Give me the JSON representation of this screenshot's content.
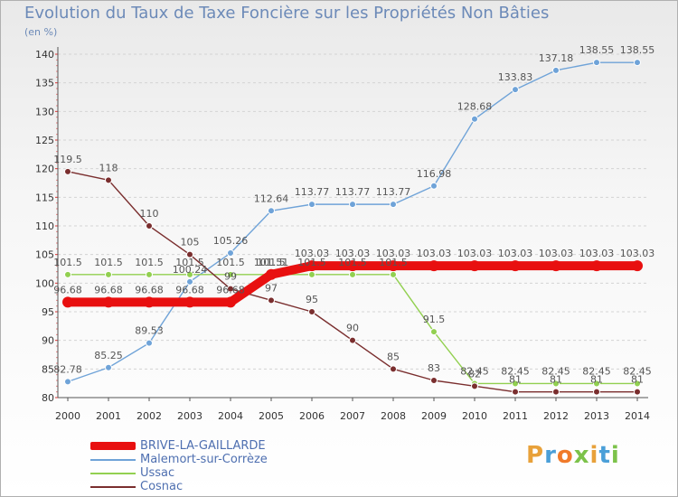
{
  "title": "Evolution du Taux de Taxe Foncière sur les Propriétés Non Bâties",
  "unit": "(en %)",
  "logo": {
    "text": "Proxiti",
    "colors": [
      "#e8a13a",
      "#4a9fd8",
      "#f07a2a",
      "#7cc24a",
      "#e8a13a",
      "#4a9fd8",
      "#7cc24a"
    ]
  },
  "chart_data": {
    "type": "line",
    "title": "Evolution du Taux de Taxe Foncière sur les Propriétés Non Bâties",
    "ylabel": "(en %)",
    "xlabel": "",
    "ylim": [
      80,
      140
    ],
    "yticks": [
      80,
      85,
      90,
      95,
      100,
      105,
      110,
      115,
      120,
      125,
      130,
      135,
      140
    ],
    "x": [
      2000,
      2001,
      2002,
      2003,
      2004,
      2005,
      2006,
      2007,
      2008,
      2009,
      2010,
      2011,
      2012,
      2013,
      2014
    ],
    "legend_position": "bottom-left",
    "series": [
      {
        "name": "Malemort-sur-Corrèze",
        "color": "#6fa3d8",
        "values": [
          82.78,
          85.25,
          89.53,
          100.24,
          105.26,
          112.64,
          113.77,
          113.77,
          113.77,
          116.98,
          128.68,
          133.83,
          137.18,
          138.55,
          138.55
        ],
        "labels": [
          "82.78",
          "85.25",
          "89.53",
          "100.24",
          "105.26",
          "112.64",
          "113.77",
          "113.77",
          "113.77",
          "116.98",
          "128.68",
          "133.83",
          "137.18",
          "138.55",
          "138.55"
        ]
      },
      {
        "name": "Ussac",
        "color": "#92d050",
        "values": [
          101.5,
          101.5,
          101.5,
          101.5,
          101.5,
          101.5,
          101.5,
          101.5,
          101.5,
          91.5,
          82.45,
          82.45,
          82.45,
          82.45,
          82.45
        ],
        "labels": [
          "101.5",
          "101.5",
          "101.5",
          "101.5",
          "101.5",
          "101.5",
          "101.5",
          "101.5",
          "101.5",
          "91.5",
          "82.45",
          "82.45",
          "82.45",
          "82.45",
          "82.45"
        ]
      },
      {
        "name": "Cosnac",
        "color": "#7a2e2e",
        "values": [
          119.5,
          118,
          110,
          105,
          99,
          97,
          95,
          90,
          85,
          83,
          82,
          81,
          81,
          81,
          81
        ],
        "labels": [
          "119.5",
          "118",
          "110",
          "105",
          "99",
          "97",
          "95",
          "90",
          "85",
          "83",
          "82",
          "81",
          "81",
          "81",
          "81"
        ]
      },
      {
        "name": "BRIVE-LA-GAILLARDE",
        "color": "#e81010",
        "values": [
          96.68,
          96.68,
          96.68,
          96.68,
          96.68,
          101.51,
          103.03,
          103.03,
          103.03,
          103.03,
          103.03,
          103.03,
          103.03,
          103.03,
          103.03
        ],
        "labels": [
          "96.68",
          "96.68",
          "96.68",
          "96.68",
          "96.68",
          "101.51",
          "103.03",
          "103.03",
          "103.03",
          "103.03",
          "103.03",
          "103.03",
          "103.03",
          "103.03",
          "103.03"
        ]
      }
    ],
    "legend": [
      "BRIVE-LA-GAILLARDE",
      "Malemort-sur-Corrèze",
      "Ussac",
      "Cosnac"
    ]
  }
}
